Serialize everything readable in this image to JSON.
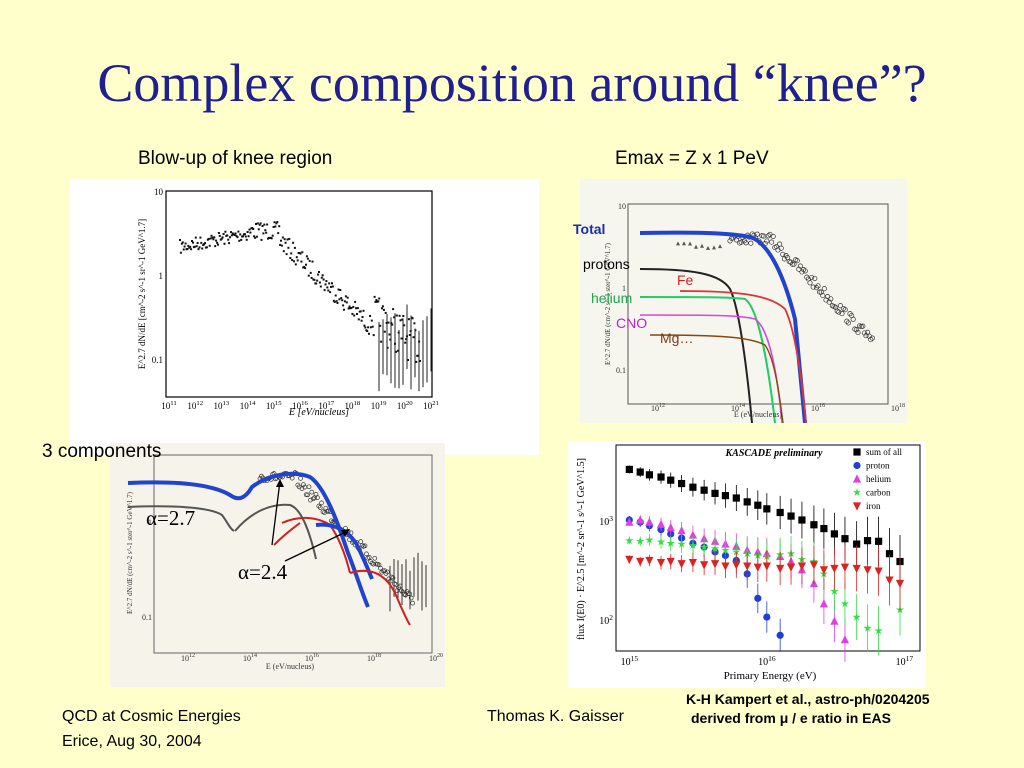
{
  "slide": {
    "title": "Complex composition around “knee”?",
    "label_blowup": "Blow-up of knee region",
    "label_emax": "Emax = Z x 1 PeV",
    "label_components": "3 components",
    "footer_left_line1": "QCD at Cosmic Energies",
    "footer_left_line2": "Erice, Aug 30, 2004",
    "footer_center": "Thomas K. Gaisser",
    "footer_right_line1": "K-H Kampert et al., astro-ph/0204205",
    "footer_right_line2": "derived from μ / e ratio in EAS"
  },
  "panel_tl": {
    "ylabel": "E^2.7 dN/dE [cm^-2 s^-1 sr^-1 GeV^1.7]",
    "xlabel": "E [eV/nucleus]",
    "yticks": [
      "10",
      "1",
      "0.1"
    ],
    "xticks": [
      "10^11",
      "10^12",
      "10^13",
      "10^14",
      "10^15",
      "10^16",
      "10^17",
      "10^18",
      "10^19",
      "10^20",
      "10^21"
    ]
  },
  "panel_tr": {
    "labels": {
      "total": "Total",
      "protons": "protons",
      "fe": "Fe",
      "helium": "helium",
      "cno": "CNO",
      "mg": "Mg…"
    },
    "ylabel": "E^2.7 dN/dE (cm^-2 s^-1 ster^-1 GeV^1.7)",
    "xlabel": "E (eV/nucleus)",
    "yticks": [
      "10",
      "1",
      "0.1"
    ],
    "xticks": [
      "10^12",
      "10^14",
      "10^16",
      "10^18"
    ],
    "colors": {
      "total": "#2244cc",
      "protons": "#222222",
      "helium": "#22cc66",
      "fe": "#dd3333",
      "cno": "#dd44dd",
      "mg": "#8b4513"
    }
  },
  "panel_bl": {
    "annotations": {
      "alpha27": "α=2.7",
      "alpha24": "α=2.4"
    },
    "ylabel": "E^2.7 dN/dE (cm^-2 s^-1 ster^-1 GeV^1.7)",
    "xlabel": "E (eV/nucleus)",
    "yticks": [
      "1",
      "0.1"
    ],
    "xticks": [
      "10^12",
      "10^14",
      "10^16",
      "10^18",
      "10^20"
    ]
  },
  "panel_br": {
    "banner": "KASCADE preliminary",
    "ylabel": "flux I(E0) · E^2.5 [m^-2 sr^-1 s^-1 GeV^1.5]",
    "xlabel": "Primary Energy (eV)",
    "yticks": [
      "10^3",
      "10^2"
    ],
    "xticks": [
      "10^15",
      "10^16",
      "10^17"
    ],
    "legend": [
      {
        "name": "sum of all",
        "color": "#000000",
        "marker": "square"
      },
      {
        "name": "proton",
        "color": "#1f3fd6",
        "marker": "circle"
      },
      {
        "name": "helium",
        "color": "#e040e0",
        "marker": "triangle-up"
      },
      {
        "name": "carbon",
        "color": "#33dd44",
        "marker": "star"
      },
      {
        "name": "iron",
        "color": "#dd2222",
        "marker": "triangle-down"
      }
    ]
  },
  "chart_data": [
    {
      "type": "scatter",
      "title": "KASCADE preliminary",
      "xlabel": "Primary Energy (eV)",
      "ylabel": "flux I(E0) · E^2.5 [m^-2 sr^-1 s^-1 GeV^1.5]",
      "x_scale": "log",
      "y_scale": "log",
      "xlim": [
        800000000000000,
        130000000000000000
      ],
      "ylim": [
        50,
        6000
      ],
      "legend": "top-right",
      "series": [
        {
          "name": "sum of all",
          "x": [
            1000000000000000.0,
            1200000000000000.0,
            1400000000000000.0,
            1700000000000000.0,
            2000000000000000.0,
            2400000000000000.0,
            2900000000000000.0,
            3500000000000000.0,
            4200000000000000.0,
            5000000000000000.0,
            6000000000000000.0,
            7200000000000000.0,
            8600000000000000.0,
            1e+16,
            1.25e+16,
            1.5e+16,
            1.8e+16,
            2.2e+16,
            2.6e+16,
            3.1e+16,
            3.7e+16,
            4.5e+16,
            5.4e+16,
            6.5e+16,
            7.8e+16,
            9.3e+16
          ],
          "values": [
            3400,
            3200,
            3000,
            2850,
            2650,
            2450,
            2250,
            2100,
            1950,
            1850,
            1750,
            1600,
            1480,
            1360,
            1250,
            1150,
            1050,
            940,
            860,
            760,
            680,
            600,
            650,
            640,
            480,
            400
          ]
        },
        {
          "name": "proton",
          "x": [
            1000000000000000.0,
            1200000000000000.0,
            1400000000000000.0,
            1700000000000000.0,
            2000000000000000.0,
            2400000000000000.0,
            2900000000000000.0,
            3500000000000000.0,
            4200000000000000.0,
            5000000000000000.0,
            6000000000000000.0,
            7200000000000000.0,
            8600000000000000.0,
            1e+16,
            1.25e+16
          ],
          "values": [
            1050,
            1000,
            920,
            840,
            760,
            690,
            610,
            560,
            500,
            460,
            410,
            300,
            170,
            110,
            72
          ]
        },
        {
          "name": "helium",
          "x": [
            1000000000000000.0,
            1200000000000000.0,
            1400000000000000.0,
            1700000000000000.0,
            2000000000000000.0,
            2400000000000000.0,
            2900000000000000.0,
            3500000000000000.0,
            4200000000000000.0,
            5000000000000000.0,
            6000000000000000.0,
            7200000000000000.0,
            8600000000000000.0,
            1e+16,
            1.25e+16,
            1.5e+16,
            1.8e+16,
            2.2e+16,
            2.6e+16,
            3.1e+16,
            3.7e+16
          ],
          "values": [
            1000,
            1050,
            1000,
            950,
            880,
            820,
            740,
            680,
            640,
            600,
            570,
            520,
            500,
            480,
            450,
            400,
            330,
            240,
            150,
            100,
            65
          ]
        },
        {
          "name": "carbon",
          "x": [
            1000000000000000.0,
            1200000000000000.0,
            1400000000000000.0,
            1700000000000000.0,
            2000000000000000.0,
            2400000000000000.0,
            2900000000000000.0,
            3500000000000000.0,
            4200000000000000.0,
            5000000000000000.0,
            6000000000000000.0,
            7200000000000000.0,
            8600000000000000.0,
            1e+16,
            1.25e+16,
            1.5e+16,
            1.8e+16,
            2.2e+16,
            2.6e+16,
            3.1e+16,
            3.7e+16,
            4.5e+16,
            5.4e+16,
            6.5e+16,
            9.3e+16
          ],
          "values": [
            650,
            640,
            660,
            630,
            610,
            600,
            580,
            560,
            540,
            520,
            500,
            480,
            460,
            450,
            470,
            480,
            420,
            400,
            300,
            200,
            150,
            110,
            85,
            80,
            130
          ]
        },
        {
          "name": "iron",
          "x": [
            1000000000000000.0,
            1200000000000000.0,
            1400000000000000.0,
            1700000000000000.0,
            2000000000000000.0,
            2400000000000000.0,
            2900000000000000.0,
            3500000000000000.0,
            4200000000000000.0,
            5000000000000000.0,
            6000000000000000.0,
            7200000000000000.0,
            8600000000000000.0,
            1e+16,
            1.25e+16,
            1.5e+16,
            1.8e+16,
            2.2e+16,
            2.6e+16,
            3.1e+16,
            3.7e+16,
            4.5e+16,
            5.4e+16,
            6.5e+16,
            7.8e+16,
            9.3e+16
          ],
          "values": [
            420,
            400,
            410,
            390,
            400,
            380,
            390,
            370,
            380,
            360,
            370,
            360,
            350,
            360,
            340,
            350,
            360,
            370,
            330,
            340,
            350,
            340,
            330,
            320,
            260,
            240
          ]
        }
      ]
    }
  ]
}
